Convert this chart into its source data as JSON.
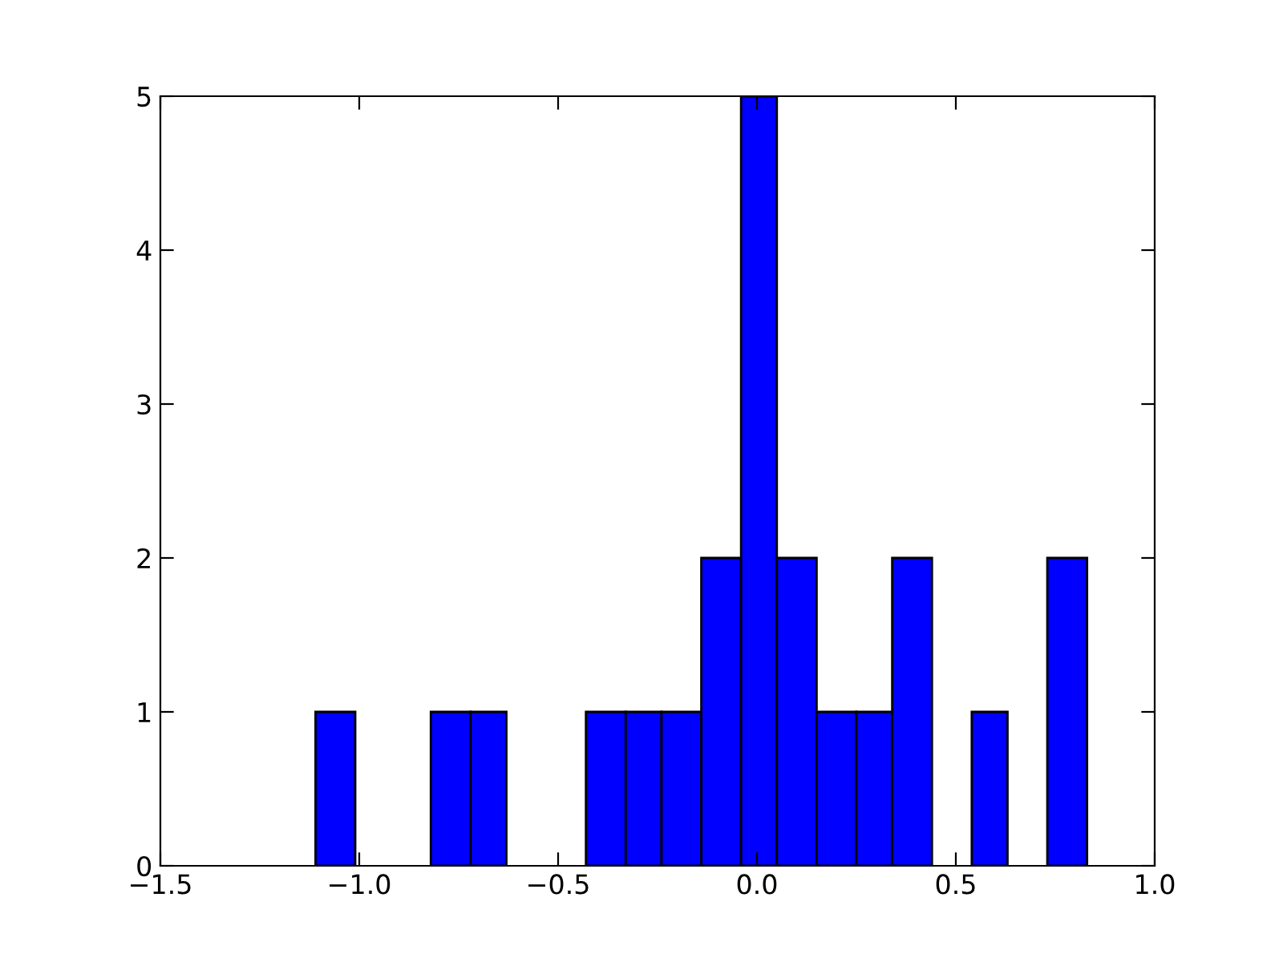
{
  "chart_data": {
    "type": "histogram",
    "bins": [
      -1.11,
      -1.01,
      -0.82,
      -0.72,
      -0.63,
      -0.43,
      -0.33,
      -0.24,
      -0.14,
      -0.04,
      0.05,
      0.15,
      0.25,
      0.34,
      0.44,
      0.54,
      0.63,
      0.73,
      0.83
    ],
    "values": [
      1,
      0,
      1,
      1,
      0,
      1,
      1,
      1,
      2,
      5,
      2,
      1,
      1,
      2,
      0,
      1,
      0,
      2
    ],
    "color": "#0000ff",
    "xlim": [
      -1.5,
      1.0
    ],
    "xticks": [
      {
        "value": -1.5,
        "label": "−1.5"
      },
      {
        "value": -1.0,
        "label": "−1.0"
      },
      {
        "value": -0.5,
        "label": "−0.5"
      },
      {
        "value": 0.0,
        "label": "0.0"
      },
      {
        "value": 0.5,
        "label": "0.5"
      },
      {
        "value": 1.0,
        "label": "1.0"
      }
    ],
    "ylim": [
      0,
      5
    ],
    "yticks": [
      0,
      1,
      2,
      3,
      4,
      5
    ],
    "grid": false
  }
}
